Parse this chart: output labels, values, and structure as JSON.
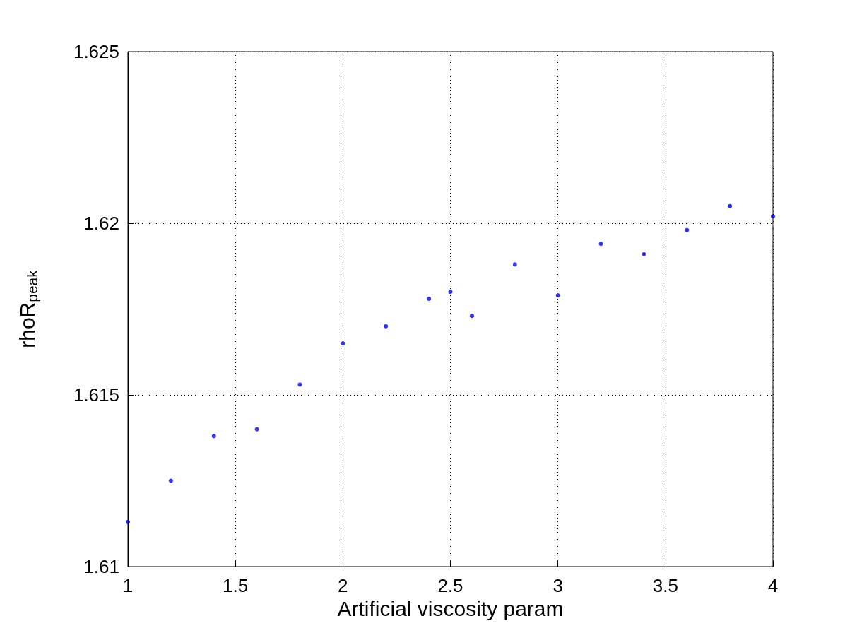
{
  "chart_data": {
    "type": "scatter",
    "xlabel": "Artificial viscosity param",
    "ylabel": "rhoR$_{peak}$",
    "x": [
      1,
      1.2,
      1.4,
      1.6,
      1.8,
      2,
      2.2,
      2.4,
      2.5,
      2.6,
      2.8,
      3,
      3.2,
      3.4,
      3.6,
      3.8,
      4
    ],
    "values": [
      1.6113,
      1.6125,
      1.6138,
      1.614,
      1.6153,
      1.6165,
      1.617,
      1.6178,
      1.618,
      1.6173,
      1.6188,
      1.6179,
      1.6194,
      1.6191,
      1.6198,
      1.6205,
      1.6202
    ],
    "color": "#0000ff",
    "marker": "circle",
    "xlim": [
      1,
      4
    ],
    "xticks": [
      1,
      1.5,
      2,
      2.5,
      3,
      3.5,
      4
    ],
    "ylim": [
      1.61,
      1.625
    ],
    "yticks": [
      1.61,
      1.615,
      1.62,
      1.625
    ],
    "grid": true
  }
}
